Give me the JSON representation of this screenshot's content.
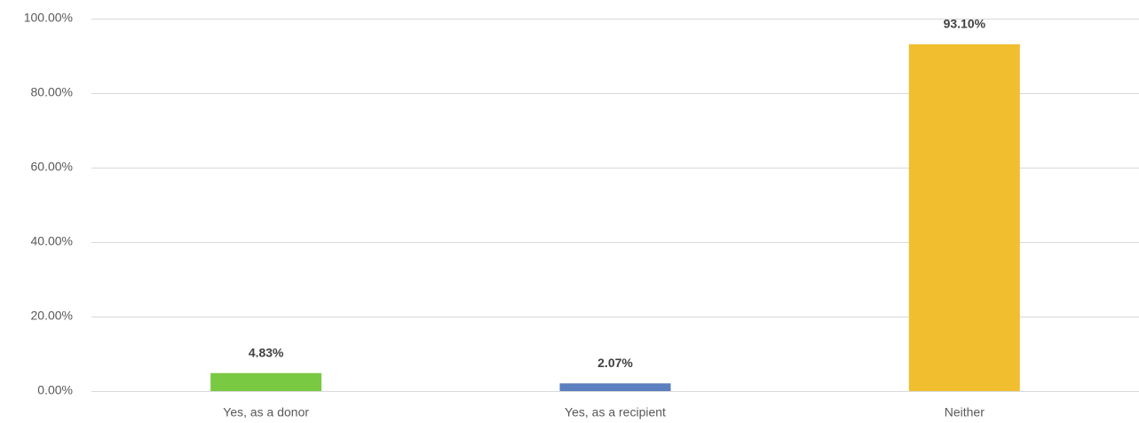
{
  "chart_data": {
    "type": "bar",
    "categories": [
      "Yes, as a donor",
      "Yes, as a recipient",
      "Neither"
    ],
    "values": [
      4.83,
      2.07,
      93.1
    ],
    "value_labels": [
      "4.83%",
      "2.07%",
      "93.10%"
    ],
    "colors": [
      "#7ac943",
      "#5b7fbf",
      "#f0be2f"
    ],
    "ylim": [
      0,
      100
    ],
    "yticks": [
      {
        "value": 0,
        "label": "0.00%"
      },
      {
        "value": 20,
        "label": "20.00%"
      },
      {
        "value": 40,
        "label": "40.00%"
      },
      {
        "value": 60,
        "label": "60.00%"
      },
      {
        "value": 80,
        "label": "80.00%"
      },
      {
        "value": 100,
        "label": "100.00%"
      }
    ],
    "grid": true
  }
}
